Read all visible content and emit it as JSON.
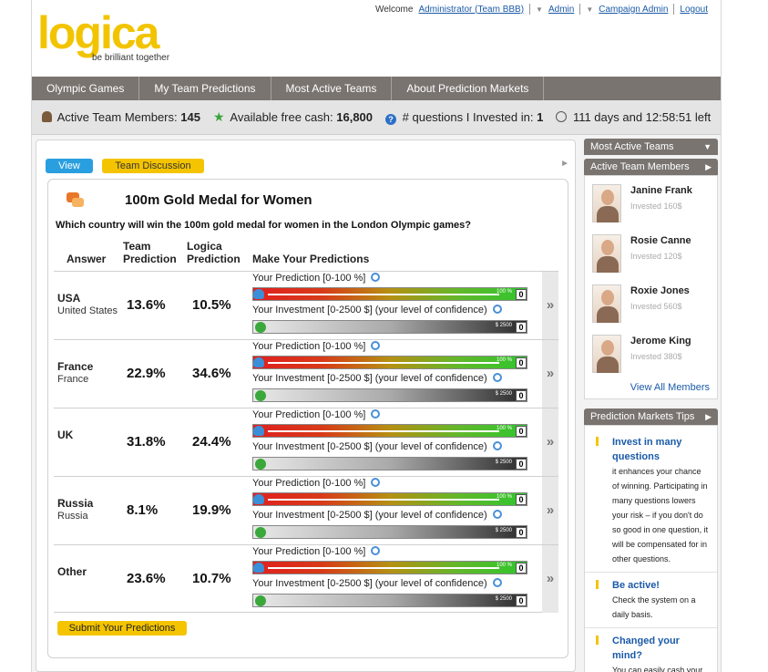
{
  "header": {
    "logo_text": "logica",
    "tagline": "be brilliant together",
    "welcome_text": "Welcome",
    "user_link": "Administrator (Team BBB)",
    "admin_link": "Admin",
    "campaign_admin_link": "Campaign Admin",
    "logout_link": "Logout"
  },
  "nav": {
    "items": [
      "Olympic Games",
      "My Team Predictions",
      "Most Active Teams",
      "About Prediction Markets"
    ]
  },
  "status": {
    "members_label": "Active Team Members:",
    "members_value": "145",
    "cash_label": "Available free cash:",
    "cash_value": "16,800",
    "invested_label": "# questions I Invested in:",
    "invested_value": "1",
    "time_left": "111 days and 12:58:51 left"
  },
  "tabs": {
    "view": "View",
    "discussion": "Team Discussion"
  },
  "question": {
    "title": "100m Gold Medal for Women",
    "text": "Which country will win the 100m gold medal for women in the London Olympic games?",
    "col_answer": "Answer",
    "col_team_1": "Team",
    "col_team_2": "Prediction",
    "col_logica_1": "Logica",
    "col_logica_2": "Prediction",
    "col_make": "Make Your Predictions",
    "prediction_label": "Your Prediction [0-100 %]",
    "investment_label": "Your Investment [0-2500 $] (your level of confidence)",
    "pred_max_label": "100 %",
    "inv_max_label": "$ 2500",
    "answers": [
      {
        "name": "USA",
        "subname": "United States",
        "team": "13.6%",
        "logica": "10.5%",
        "pred_value": "0",
        "inv_value": "0"
      },
      {
        "name": "France",
        "subname": "France",
        "team": "22.9%",
        "logica": "34.6%",
        "pred_value": "0",
        "inv_value": "0"
      },
      {
        "name": "UK",
        "subname": "",
        "team": "31.8%",
        "logica": "24.4%",
        "pred_value": "0",
        "inv_value": "0"
      },
      {
        "name": "Russia",
        "subname": "Russia",
        "team": "8.1%",
        "logica": "19.9%",
        "pred_value": "0",
        "inv_value": "0"
      },
      {
        "name": "Other",
        "subname": "",
        "team": "23.6%",
        "logica": "10.7%",
        "pred_value": "0",
        "inv_value": "0"
      }
    ],
    "submit": "Submit Your Predictions"
  },
  "sidebar": {
    "most_active_title": "Most Active Teams",
    "members_title": "Active Team Members",
    "members": [
      {
        "name": "Janine Frank",
        "invested": "Invested 160$"
      },
      {
        "name": "Rosie Canne",
        "invested": "Invested 120$"
      },
      {
        "name": "Roxie Jones",
        "invested": "Invested 560$"
      },
      {
        "name": "Jerome King",
        "invested": "Invested 380$"
      }
    ],
    "view_all": "View All Members",
    "tips_title": "Prediction Markets Tips",
    "tips": [
      {
        "title": "Invest in many questions",
        "text": "it enhances your chance of winning. Participating in many questions lowers your risk – if you don't do so good in one question, it will be compensated for in other questions."
      },
      {
        "title": "Be active!",
        "text": "Check the system on a daily basis."
      },
      {
        "title": "Changed your mind?",
        "text": "You can easily cash your"
      }
    ]
  }
}
